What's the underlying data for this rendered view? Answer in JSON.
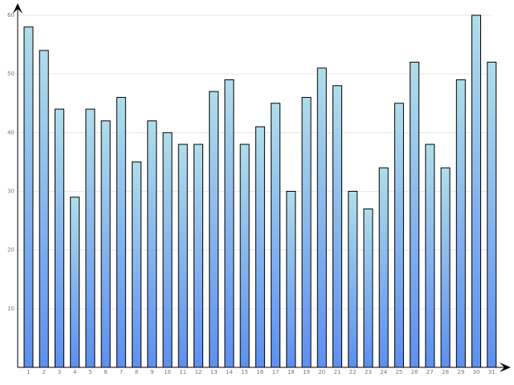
{
  "chart_data": {
    "type": "bar",
    "title": "",
    "xlabel": "",
    "ylabel": "",
    "categories": [
      "1",
      "2",
      "3",
      "4",
      "5",
      "6",
      "7",
      "8",
      "9",
      "10",
      "11",
      "12",
      "13",
      "14",
      "15",
      "16",
      "17",
      "18",
      "19",
      "20",
      "21",
      "22",
      "23",
      "24",
      "25",
      "26",
      "27",
      "28",
      "29",
      "30",
      "31"
    ],
    "values": [
      58,
      54,
      44,
      29,
      44,
      42,
      46,
      35,
      42,
      40,
      38,
      38,
      47,
      49,
      38,
      41,
      45,
      30,
      46,
      51,
      48,
      30,
      27,
      34,
      45,
      52,
      38,
      34,
      49,
      60,
      52
    ],
    "y_ticks": [
      10,
      20,
      30,
      40,
      50,
      60
    ],
    "y_tick_labels": [
      "10",
      "20",
      "30",
      "40",
      "50",
      "60"
    ],
    "ylim": [
      0,
      60
    ],
    "grid": true,
    "legend": "none",
    "colors": {
      "bar_top": "#b0dde9",
      "bar_bottom": "#5d8ff0",
      "bar_border": "#000000",
      "grid": "#e6e6e6",
      "axis": "#000000",
      "tick_text": "#777777"
    }
  }
}
